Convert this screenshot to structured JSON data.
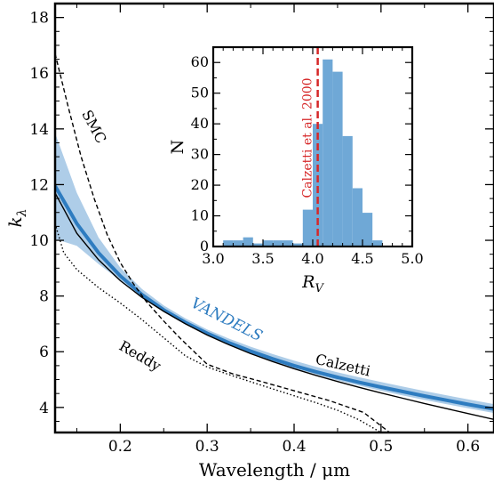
{
  "chart_data": [
    {
      "type": "line",
      "xlabel": "Wavelength / μm",
      "ylabel": "k_λ",
      "xlim": [
        0.125,
        0.63
      ],
      "ylim": [
        3.1,
        18.5
      ],
      "xticks": [
        0.2,
        0.3,
        0.4,
        0.5,
        0.6
      ],
      "xtick_labels": [
        "0.2",
        "0.3",
        "0.4",
        "0.5",
        "0.6"
      ],
      "yticks": [
        4,
        6,
        8,
        10,
        12,
        14,
        16,
        18
      ],
      "ytick_labels": [
        "4",
        "6",
        "8",
        "10",
        "12",
        "14",
        "16",
        "18"
      ],
      "series": [
        {
          "name": "VANDELS",
          "color": "#2e7cc0",
          "x": [
            0.125,
            0.15,
            0.175,
            0.2,
            0.225,
            0.25,
            0.275,
            0.3,
            0.325,
            0.35,
            0.375,
            0.4,
            0.425,
            0.45,
            0.475,
            0.5,
            0.525,
            0.55,
            0.575,
            0.6,
            0.63
          ],
          "y": [
            11.95,
            10.6,
            9.55,
            8.72,
            8.05,
            7.5,
            7.05,
            6.66,
            6.32,
            6.02,
            5.75,
            5.5,
            5.28,
            5.08,
            4.9,
            4.73,
            4.57,
            4.41,
            4.26,
            4.11,
            3.94
          ],
          "band_low": [
            10.05,
            9.8,
            9.15,
            8.55,
            7.97,
            7.44,
            6.99,
            6.6,
            6.25,
            5.94,
            5.66,
            5.41,
            5.18,
            4.97,
            4.78,
            4.6,
            4.43,
            4.27,
            4.12,
            3.97,
            3.8
          ],
          "band_high": [
            13.85,
            11.7,
            10.1,
            9.02,
            8.25,
            7.66,
            7.2,
            6.8,
            6.47,
            6.18,
            5.92,
            5.68,
            5.46,
            5.26,
            5.08,
            4.91,
            4.75,
            4.59,
            4.44,
            4.29,
            4.12
          ]
        },
        {
          "name": "Calzetti",
          "color": "#000000",
          "dash": "solid",
          "x": [
            0.125,
            0.15,
            0.175,
            0.2,
            0.225,
            0.25,
            0.275,
            0.3,
            0.325,
            0.35,
            0.375,
            0.4,
            0.425,
            0.45,
            0.475,
            0.5,
            0.525,
            0.55,
            0.575,
            0.6,
            0.63
          ],
          "y": [
            11.7,
            10.25,
            9.3,
            8.55,
            7.95,
            7.45,
            7.0,
            6.6,
            6.25,
            5.93,
            5.65,
            5.39,
            5.15,
            4.93,
            4.72,
            4.52,
            4.33,
            4.14,
            3.96,
            3.78,
            3.57
          ]
        },
        {
          "name": "SMC",
          "color": "#000000",
          "dash": "dashed",
          "x": [
            0.125,
            0.14,
            0.155,
            0.17,
            0.185,
            0.2,
            0.215,
            0.23,
            0.25,
            0.27,
            0.3,
            0.33,
            0.36,
            0.4,
            0.44,
            0.48,
            0.51
          ],
          "y": [
            16.7,
            14.8,
            13.0,
            11.5,
            10.2,
            9.2,
            8.45,
            7.8,
            7.1,
            6.45,
            5.55,
            5.2,
            4.95,
            4.6,
            4.25,
            3.82,
            3.1
          ]
        },
        {
          "name": "Reddy",
          "color": "#000000",
          "dash": "dotted",
          "x": [
            0.125,
            0.135,
            0.15,
            0.175,
            0.2,
            0.225,
            0.25,
            0.275,
            0.3,
            0.325,
            0.35,
            0.375,
            0.4,
            0.425,
            0.45,
            0.475,
            0.5
          ],
          "y": [
            10.6,
            9.55,
            8.95,
            8.3,
            7.75,
            7.15,
            6.5,
            5.85,
            5.45,
            5.18,
            4.92,
            4.67,
            4.42,
            4.17,
            3.9,
            3.55,
            3.1
          ]
        }
      ],
      "annotations": [
        {
          "text": "SMC",
          "x": 0.165,
          "y": 14.0
        },
        {
          "text": "Reddy",
          "x": 0.22,
          "y": 5.7
        },
        {
          "text": "VANDELS",
          "x": 0.32,
          "y": 7.0
        },
        {
          "text": "Calzetti",
          "x": 0.455,
          "y": 5.35
        }
      ]
    },
    {
      "type": "bar",
      "subtype": "histogram",
      "xlabel": "R_V",
      "ylabel": "N",
      "xlim": [
        3.0,
        5.0
      ],
      "ylim": [
        0,
        65
      ],
      "xticks": [
        3.0,
        3.5,
        4.0,
        4.5,
        5.0
      ],
      "xtick_labels": [
        "3.0",
        "3.5",
        "4.0",
        "4.5",
        "5.0"
      ],
      "yticks": [
        0,
        10,
        20,
        30,
        40,
        50,
        60
      ],
      "ytick_labels": [
        "0",
        "10",
        "20",
        "30",
        "40",
        "50",
        "60"
      ],
      "bar_color": "#6fa8d6",
      "bin_width": 0.1,
      "bin_starts": [
        3.1,
        3.2,
        3.3,
        3.4,
        3.5,
        3.6,
        3.7,
        3.8,
        3.9,
        4.0,
        4.1,
        4.2,
        4.3,
        4.4,
        4.5,
        4.6
      ],
      "counts": [
        2,
        2,
        3,
        1,
        2,
        2,
        2,
        1,
        12,
        40,
        61,
        57,
        36,
        19,
        11,
        2
      ],
      "reference_line": {
        "x": 4.05,
        "label": "Calzetti et al. 2000",
        "color": "#d62728"
      }
    }
  ]
}
